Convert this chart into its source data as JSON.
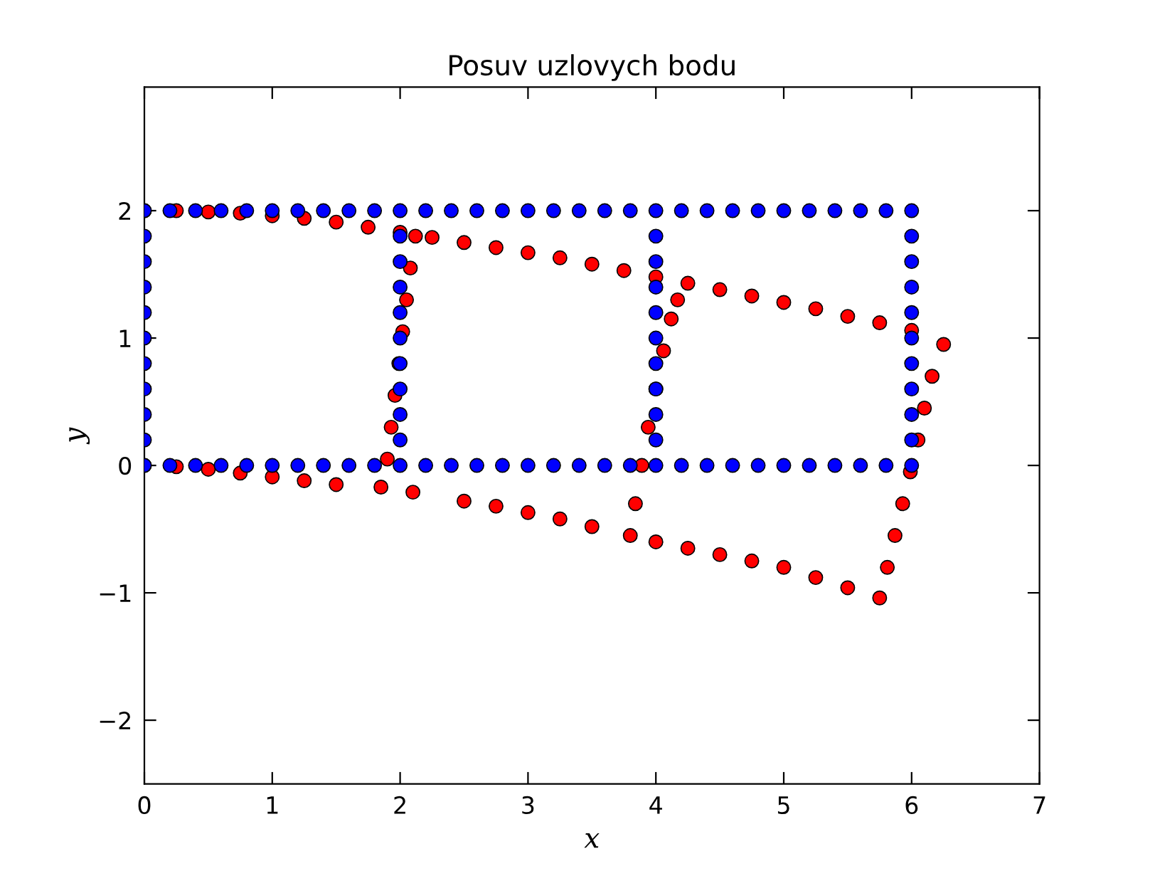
{
  "chart_data": {
    "type": "scatter",
    "title": "Posuv uzlovych bodu",
    "xlabel": "x",
    "ylabel": "y",
    "xlim": [
      0,
      7
    ],
    "ylim": [
      -2.5,
      2.97
    ],
    "xticks": [
      0,
      1,
      2,
      3,
      4,
      5,
      6,
      7
    ],
    "yticks": [
      {
        "value": -2,
        "label": "−2"
      },
      {
        "value": -1,
        "label": "−1"
      },
      0,
      1,
      2
    ],
    "grid": false,
    "legend": false,
    "marker": "circle",
    "series": [
      {
        "color": "#ff0000",
        "x": [
          0,
          0.25,
          0.5,
          0.75,
          1,
          1.25,
          1.5,
          1.75,
          2,
          2.25,
          2.5,
          2.75,
          3,
          3.25,
          3.5,
          3.75,
          4,
          4.25,
          4.5,
          4.75,
          5,
          5.25,
          5.5,
          5.75,
          6,
          6.25,
          0,
          0.25,
          0.5,
          0.75,
          1,
          1.25,
          1.5,
          1.85,
          2.1,
          2.5,
          2.75,
          3,
          3.25,
          3.5,
          3.8,
          4,
          4.25,
          4.5,
          4.75,
          5,
          5.25,
          5.5,
          5.75,
          1.9,
          1.93,
          1.96,
          1.99,
          2.02,
          2.05,
          2.08,
          2.12,
          3.84,
          3.89,
          3.94,
          4.0,
          4.06,
          4.12,
          4.17,
          5.81,
          5.87,
          5.93,
          5.99,
          6.05,
          6.1,
          6.16
        ],
        "values": [
          2,
          2.0,
          1.99,
          1.98,
          1.96,
          1.94,
          1.91,
          1.87,
          1.83,
          1.79,
          1.75,
          1.71,
          1.67,
          1.63,
          1.58,
          1.53,
          1.48,
          1.43,
          1.38,
          1.33,
          1.28,
          1.23,
          1.17,
          1.12,
          1.06,
          0.95,
          0,
          -0.01,
          -0.03,
          -0.06,
          -0.09,
          -0.12,
          -0.15,
          -0.17,
          -0.21,
          -0.28,
          -0.32,
          -0.37,
          -0.42,
          -0.48,
          -0.55,
          -0.6,
          -0.65,
          -0.7,
          -0.75,
          -0.8,
          -0.88,
          -0.96,
          -1.04,
          0.05,
          0.3,
          0.55,
          0.8,
          1.05,
          1.3,
          1.55,
          1.8,
          -0.3,
          0,
          0.3,
          0.6,
          0.9,
          1.15,
          1.3,
          -0.8,
          -0.55,
          -0.3,
          -0.05,
          0.2,
          0.45,
          0.7
        ]
      },
      {
        "color": "#0000ff",
        "x": [
          0,
          0.2,
          0.4,
          0.6,
          0.8,
          1,
          1.2,
          1.4,
          1.6,
          1.8,
          2,
          2.2,
          2.4,
          2.6,
          2.8,
          3,
          3.2,
          3.4,
          3.6,
          3.8,
          4,
          4.2,
          4.4,
          4.6,
          4.8,
          5,
          5.2,
          5.4,
          5.6,
          5.8,
          6,
          0,
          0.2,
          0.4,
          0.6,
          0.8,
          1,
          1.2,
          1.4,
          1.6,
          1.8,
          2,
          2.2,
          2.4,
          2.6,
          2.8,
          3,
          3.2,
          3.4,
          3.6,
          3.8,
          4,
          4.2,
          4.4,
          4.6,
          4.8,
          5,
          5.2,
          5.4,
          5.6,
          5.8,
          6,
          0,
          0,
          0,
          0,
          0,
          0,
          0,
          0,
          0,
          2,
          2,
          2,
          2,
          2,
          2,
          2,
          2,
          2,
          4,
          4,
          4,
          4,
          4,
          4,
          4,
          4,
          4,
          6,
          6,
          6,
          6,
          6,
          6,
          6,
          6,
          6
        ],
        "values": [
          2,
          2,
          2,
          2,
          2,
          2,
          2,
          2,
          2,
          2,
          2,
          2,
          2,
          2,
          2,
          2,
          2,
          2,
          2,
          2,
          2,
          2,
          2,
          2,
          2,
          2,
          2,
          2,
          2,
          2,
          2,
          0,
          0,
          0,
          0,
          0,
          0,
          0,
          0,
          0,
          0,
          0,
          0,
          0,
          0,
          0,
          0,
          0,
          0,
          0,
          0,
          0,
          0,
          0,
          0,
          0,
          0,
          0,
          0,
          0,
          0,
          0,
          0.2,
          0.4,
          0.6,
          0.8,
          1,
          1.2,
          1.4,
          1.6,
          1.8,
          0.2,
          0.4,
          0.6,
          0.8,
          1,
          1.2,
          1.4,
          1.6,
          1.8,
          0.2,
          0.4,
          0.6,
          0.8,
          1,
          1.2,
          1.4,
          1.6,
          1.8,
          0.2,
          0.4,
          0.6,
          0.8,
          1,
          1.2,
          1.4,
          1.6,
          1.8
        ]
      }
    ]
  }
}
